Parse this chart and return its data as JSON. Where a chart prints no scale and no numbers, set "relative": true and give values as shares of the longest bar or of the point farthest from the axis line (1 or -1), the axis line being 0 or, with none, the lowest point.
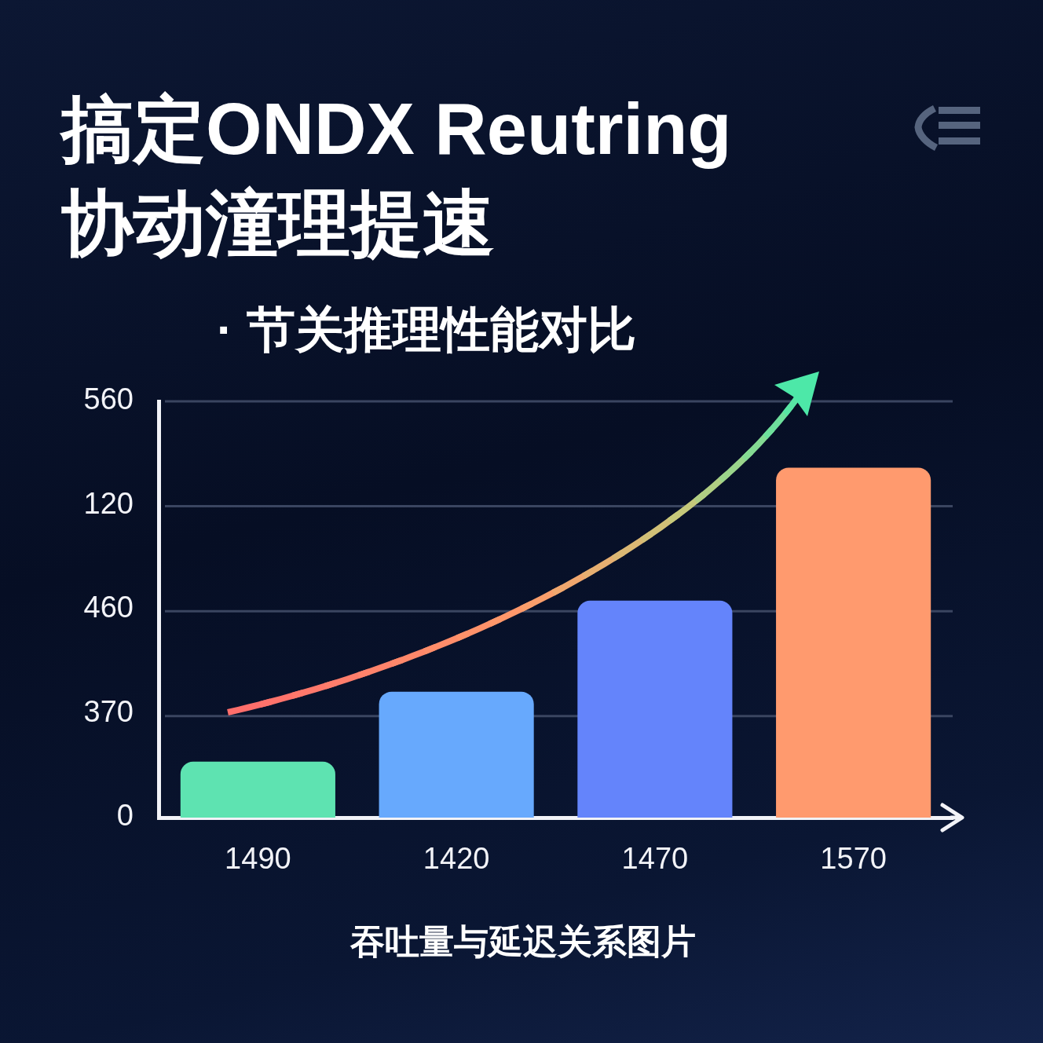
{
  "chart_data": {
    "type": "bar",
    "title": "搞定ONDX Reutring\n协动潼理提速",
    "subtitle": "· 节关推理性能对比",
    "xlabel": "吞吐量与延迟关系图片",
    "categories": [
      "1490",
      "1420",
      "1470",
      "1570"
    ],
    "values": [
      0.16,
      0.36,
      0.62,
      1
    ],
    "colors": [
      "#5ee3b1",
      "#67a9fd",
      "#6484fb",
      "#ff9a6e"
    ],
    "relative": true,
    "ref_lines": [
      {
        "axis": "y",
        "value": 0.29,
        "color": "#3a4560"
      },
      {
        "axis": "y",
        "value": 0.59,
        "color": "#3a4560"
      },
      {
        "axis": "y",
        "value": 0.89,
        "color": "#3a4560"
      },
      {
        "axis": "y",
        "value": 1.19,
        "color": "#3a4560"
      }
    ],
    "annotations": [
      "560",
      "120",
      "460",
      "370",
      "0"
    ],
    "legend": false
  }
}
